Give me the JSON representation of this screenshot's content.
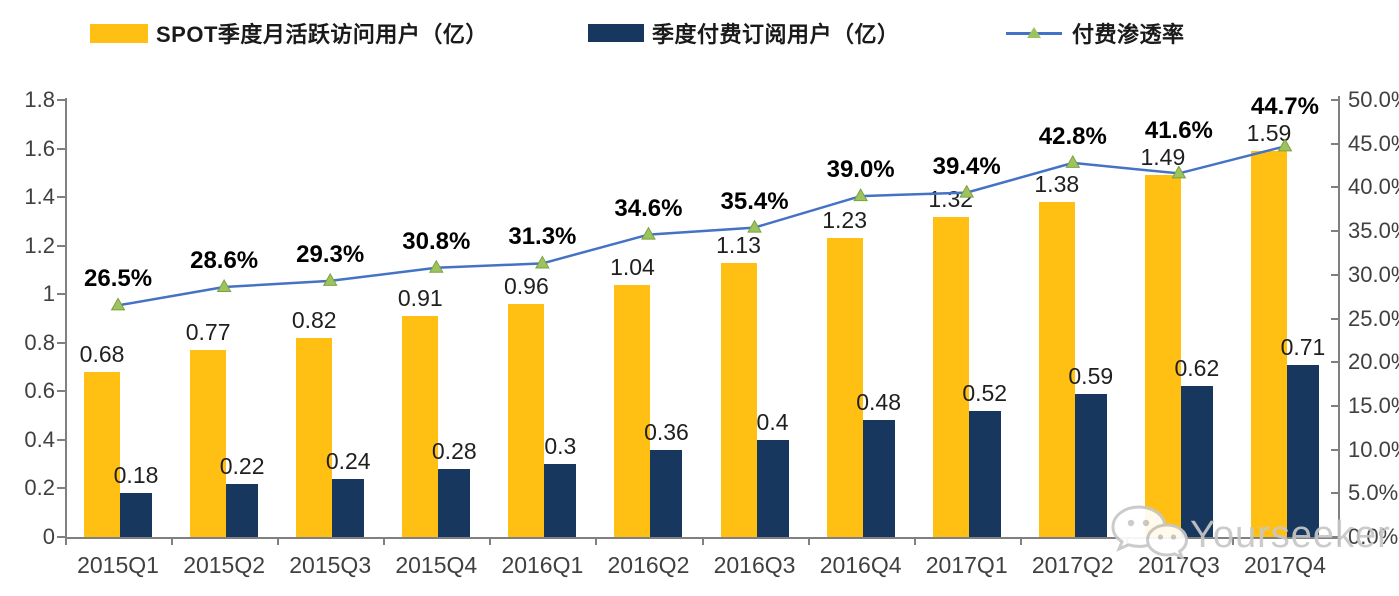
{
  "legend": {
    "items": [
      {
        "label": "SPOT季度月活跃访问用户（亿）",
        "swatch_color": "#FFC013",
        "kind": "bar"
      },
      {
        "label": "季度付费订阅用户（亿）",
        "swatch_color": "#17375E",
        "kind": "bar"
      },
      {
        "label": "付费渗透率",
        "line_color": "#4472C4",
        "marker_color": "#9DC35E",
        "kind": "line"
      }
    ]
  },
  "chart_data": {
    "type": "combo-bar-line",
    "categories": [
      "2015Q1",
      "2015Q2",
      "2015Q3",
      "2015Q4",
      "2016Q1",
      "2016Q2",
      "2016Q3",
      "2016Q4",
      "2017Q1",
      "2017Q2",
      "2017Q3",
      "2017Q4"
    ],
    "series": [
      {
        "name": "SPOT季度月活跃访问用户（亿）",
        "type": "bar",
        "axis": "left",
        "color": "#FFC013",
        "values": [
          0.68,
          0.77,
          0.82,
          0.91,
          0.96,
          1.04,
          1.13,
          1.23,
          1.32,
          1.38,
          1.49,
          1.59
        ],
        "labels": [
          "0.68",
          "0.77",
          "0.82",
          "0.91",
          "0.96",
          "1.04",
          "1.13",
          "1.23",
          "1.32",
          "1.38",
          "1.49",
          "1.59"
        ]
      },
      {
        "name": "季度付费订阅用户（亿）",
        "type": "bar",
        "axis": "left",
        "color": "#17375E",
        "values": [
          0.18,
          0.22,
          0.24,
          0.28,
          0.3,
          0.36,
          0.4,
          0.48,
          0.52,
          0.59,
          0.62,
          0.71
        ],
        "labels": [
          "0.18",
          "0.22",
          "0.24",
          "0.28",
          "0.3",
          "0.36",
          "0.4",
          "0.48",
          "0.52",
          "0.59",
          "0.62",
          "0.71"
        ]
      },
      {
        "name": "付费渗透率",
        "type": "line",
        "axis": "right",
        "color": "#4472C4",
        "marker": "triangle",
        "marker_color": "#9DC35E",
        "marker_edge_color": "#7BA23F",
        "values": [
          26.5,
          28.6,
          29.3,
          30.8,
          31.3,
          34.6,
          35.4,
          39.0,
          39.4,
          42.8,
          41.6,
          44.7
        ],
        "labels": [
          "26.5%",
          "28.6%",
          "29.3%",
          "30.8%",
          "31.3%",
          "34.6%",
          "35.4%",
          "39.0%",
          "39.4%",
          "42.8%",
          "41.6%",
          "44.7%"
        ]
      }
    ],
    "left_axis": {
      "min": 0,
      "max": 1.8,
      "step": 0.2,
      "tick_labels": [
        "0",
        "0.2",
        "0.4",
        "0.6",
        "0.8",
        "1",
        "1.2",
        "1.4",
        "1.6",
        "1.8"
      ]
    },
    "right_axis": {
      "min": 0,
      "max": 50,
      "step": 5,
      "tick_labels": [
        "0.0%",
        "5.0%",
        "10.0%",
        "15.0%",
        "20.0%",
        "25.0%",
        "30.0%",
        "35.0%",
        "40.0%",
        "45.0%",
        "50.0%"
      ]
    },
    "grid": false,
    "legend_position": "top"
  },
  "watermark": {
    "text": "Yourseeker",
    "icon": "wechat-icon"
  }
}
